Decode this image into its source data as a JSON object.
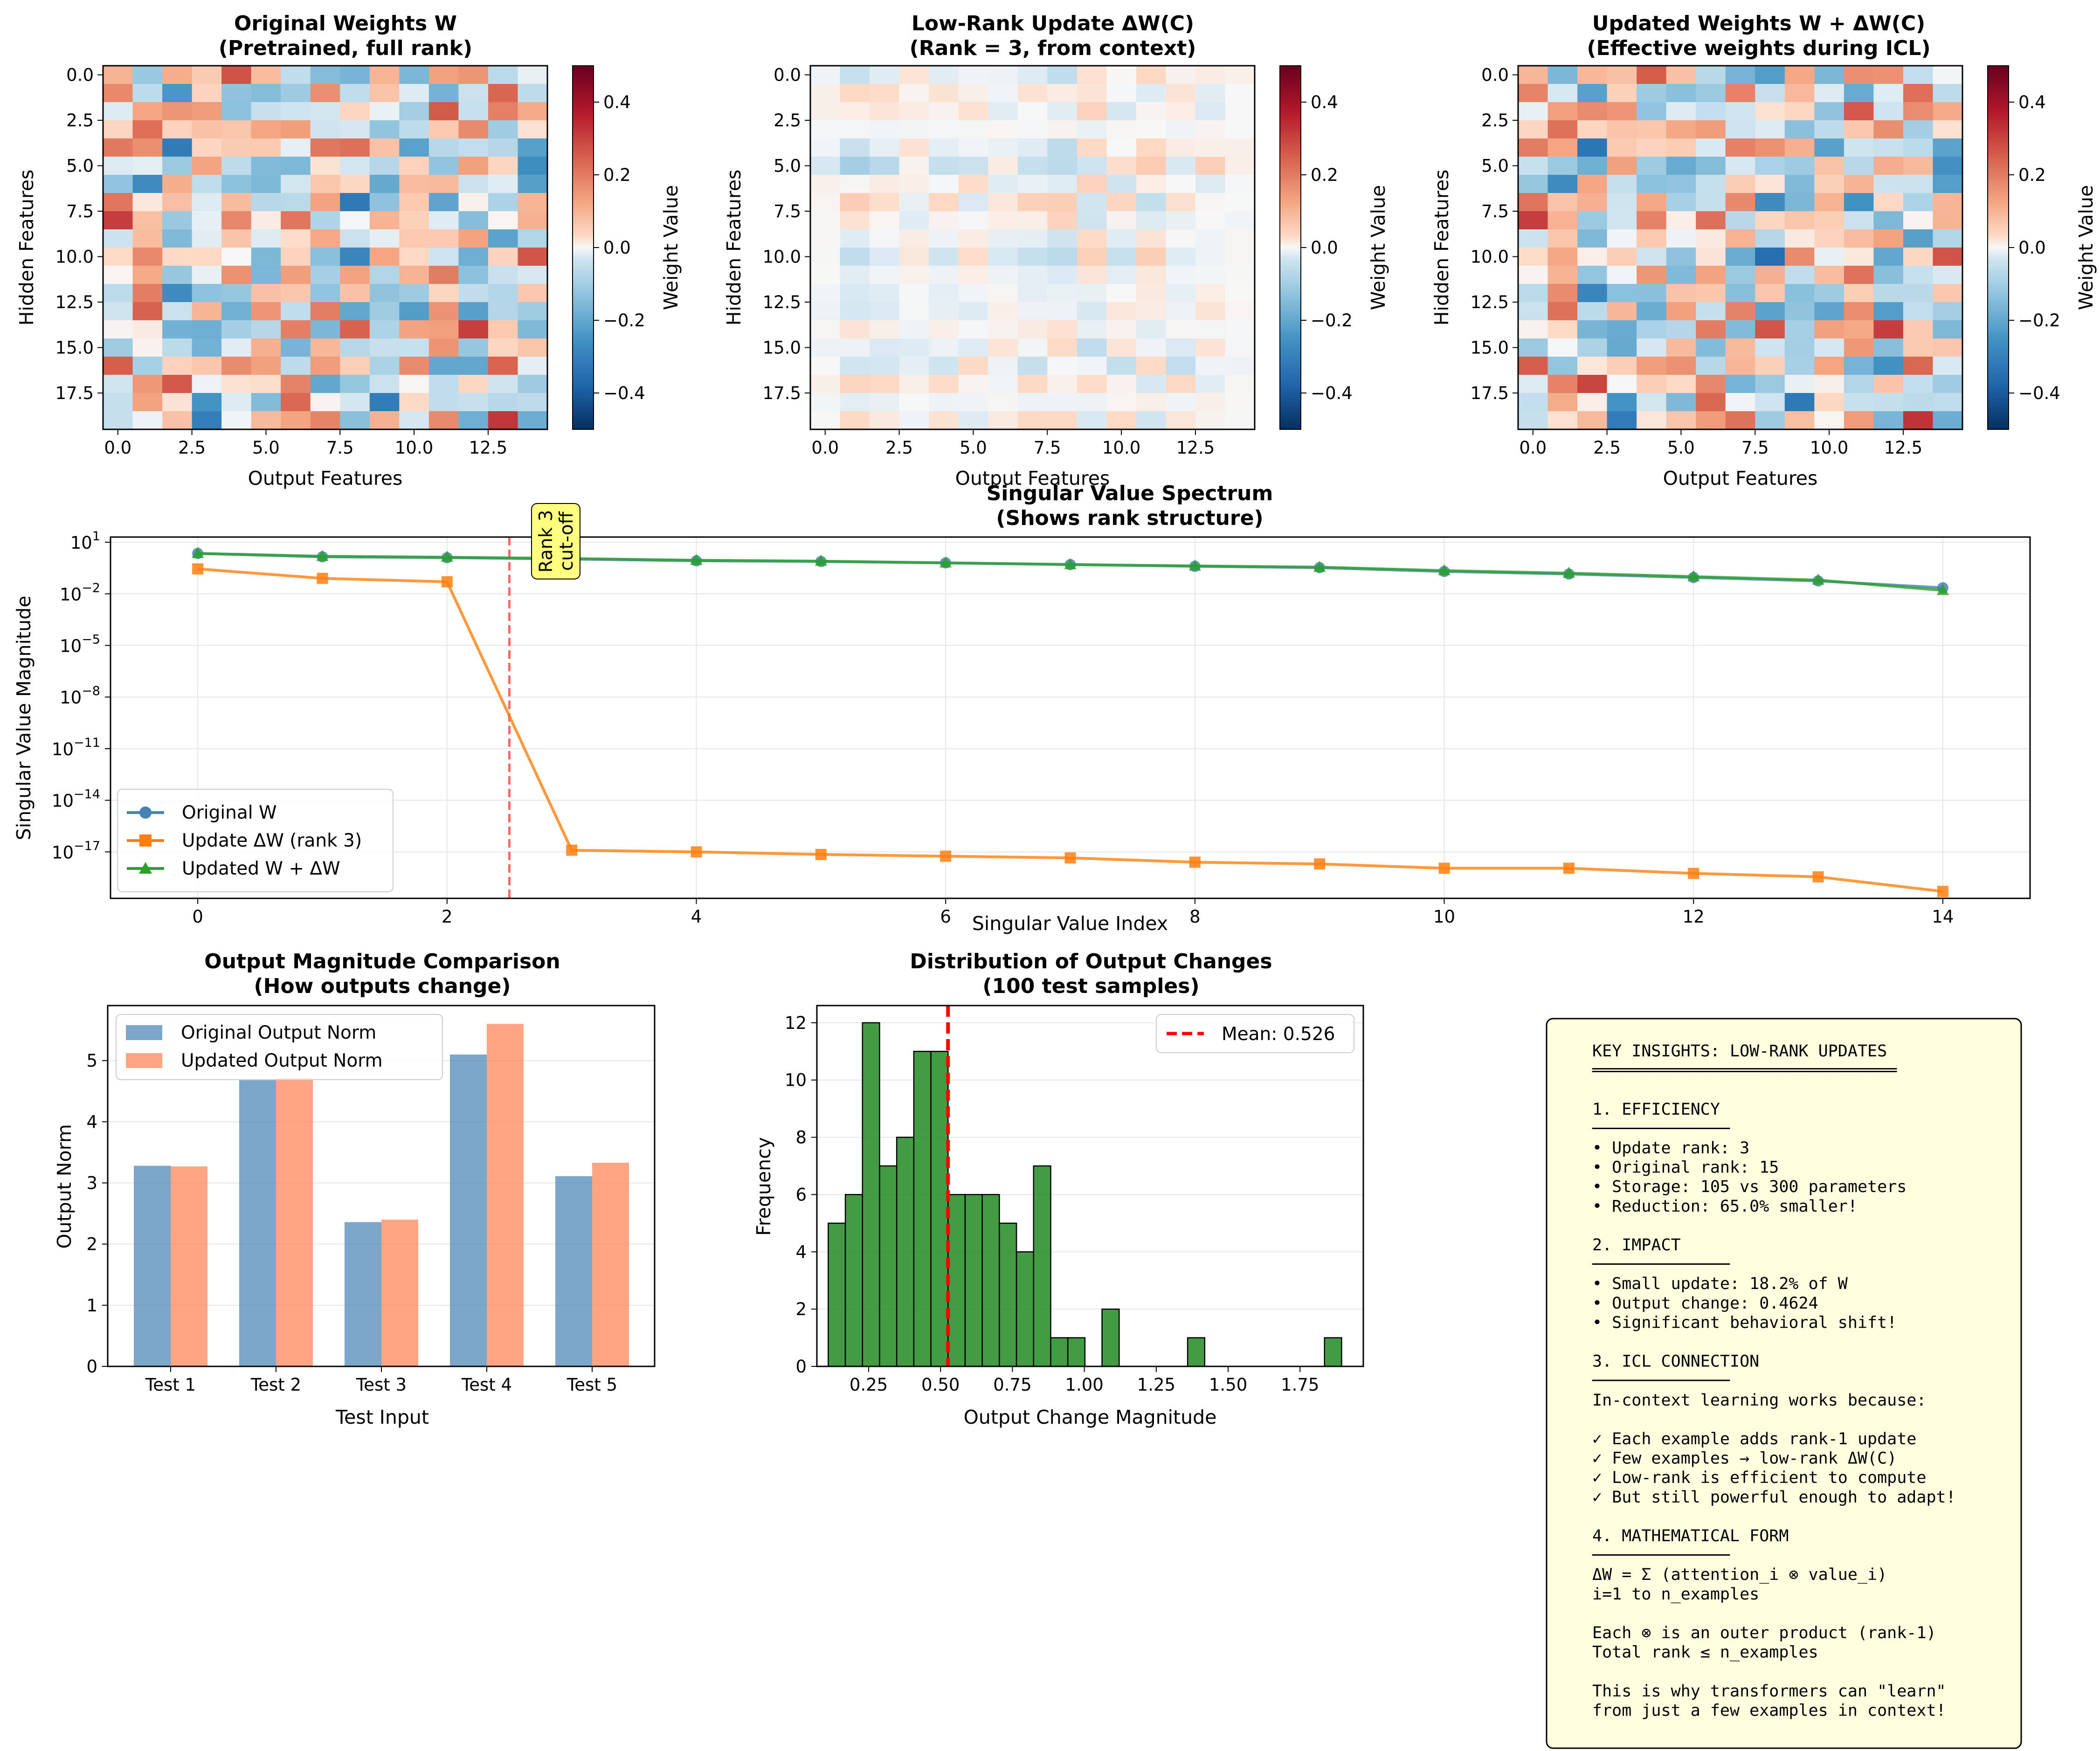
{
  "colors": {
    "original": "#4682b4",
    "update": "#ff7f0e",
    "updated": "#2ca02c",
    "bar_orig": "#4682b4",
    "bar_upd": "#ff7f50",
    "hist": "#228b22",
    "mean": "#ff0000",
    "cutoff": "#ff6666",
    "annot_bg": "#ffff80",
    "insight_bg": "#ffffe0"
  },
  "heatmaps": {
    "axis": {
      "xlabel": "Output Features",
      "ylabel": "Hidden Features",
      "xticks": [
        "0.0",
        "2.5",
        "5.0",
        "7.5",
        "10.0",
        "12.5"
      ],
      "yticks": [
        "0.0",
        "2.5",
        "5.0",
        "7.5",
        "10.0",
        "12.5",
        "15.0",
        "17.5"
      ],
      "colorbar_label": "Weight Value",
      "colorbar_ticks": [
        "0.4",
        "0.2",
        "0.0",
        "−0.2",
        "−0.4"
      ],
      "vmin": -0.5,
      "vmax": 0.5,
      "rows": 20,
      "cols": 15
    },
    "original": {
      "title_line1": "Original Weights W",
      "title_line2": "(Pretrained, full rank)"
    },
    "update": {
      "title_line1": "Low-Rank Update ΔW(C)",
      "title_line2": "(Rank = 3, from context)"
    },
    "updated": {
      "title_line1": "Updated Weights W + ΔW(C)",
      "title_line2": "(Effective weights during ICL)"
    }
  },
  "spectrum": {
    "title_line1": "Singular Value Spectrum",
    "title_line2": "(Shows rank structure)",
    "xlabel": "Singular Value Index",
    "ylabel": "Singular Value Magnitude",
    "xticks": [
      "0",
      "2",
      "4",
      "6",
      "8",
      "10",
      "12",
      "14"
    ],
    "ytick_exponents": [
      "1",
      "−2",
      "−5",
      "−8",
      "−11",
      "−14",
      "−17"
    ],
    "annotation_line1": "Rank 3",
    "annotation_line2": "cut-off",
    "cutoff_x": 2.5,
    "legend": [
      "Original W",
      "Update ΔW (rank 3)",
      "Updated W + ΔW"
    ]
  },
  "bars": {
    "title_line1": "Output Magnitude Comparison",
    "title_line2": "(How outputs change)",
    "xlabel": "Test Input",
    "ylabel": "Output Norm",
    "yticks": [
      "0",
      "1",
      "2",
      "3",
      "4",
      "5"
    ],
    "legend": [
      "Original Output Norm",
      "Updated Output Norm"
    ]
  },
  "hist": {
    "title_line1": "Distribution of Output Changes",
    "title_line2": "(100 test samples)",
    "xlabel": "Output Change Magnitude",
    "ylabel": "Frequency",
    "xticks": [
      "0.25",
      "0.50",
      "0.75",
      "1.00",
      "1.25",
      "1.50",
      "1.75"
    ],
    "yticks": [
      "0",
      "2",
      "4",
      "6",
      "8",
      "10",
      "12"
    ],
    "mean_label": "Mean: 0.526"
  },
  "insights": {
    "lines": [
      "KEY INSIGHTS: LOW-RANK UPDATES",
      "═══════════════════════════════",
      "",
      "1. EFFICIENCY",
      "   ──────────────",
      "   • Update rank: 3",
      "   • Original rank: 15",
      "   • Storage: 105 vs 300 parameters",
      "   • Reduction: 65.0% smaller!",
      "",
      "2. IMPACT",
      "   ──────────────",
      "   • Small update: 18.2% of W",
      "   • Output change: 0.4624",
      "   • Significant behavioral shift!",
      "",
      "3. ICL CONNECTION",
      "   ──────────────",
      "   In-context learning works because:",
      "",
      "   ✓ Each example adds rank-1 update",
      "   ✓ Few examples → low-rank ΔW(C)",
      "   ✓ Low-rank is efficient to compute",
      "   ✓ But still powerful enough to adapt!",
      "",
      "4. MATHEMATICAL FORM",
      "   ──────────────",
      "   ΔW = Σ (attention_i ⊗ value_i)",
      "        i=1 to n_examples",
      "",
      "   Each ⊗ is an outer product (rank-1)",
      "   Total rank ≤ n_examples",
      "",
      "This is why transformers can \"learn\"",
      "from just a few examples in context!"
    ]
  },
  "chart_data": [
    {
      "type": "heatmap",
      "title": "Original Weights W (Pretrained, full rank)",
      "xlabel": "Output Features",
      "ylabel": "Hidden Features",
      "rows": 20,
      "cols": 15,
      "vmin": -0.5,
      "vmax": 0.5,
      "colorbar_label": "Weight Value",
      "note": "random values approx in [-0.5, 0.5]"
    },
    {
      "type": "heatmap",
      "title": "Low-Rank Update ΔW(C) (Rank = 3, from context)",
      "xlabel": "Output Features",
      "ylabel": "Hidden Features",
      "rows": 20,
      "cols": 15,
      "vmin": -0.5,
      "vmax": 0.5,
      "colorbar_label": "Weight Value",
      "note": "small values approx in [-0.08, 0.08]"
    },
    {
      "type": "heatmap",
      "title": "Updated Weights W + ΔW(C) (Effective weights during ICL)",
      "xlabel": "Output Features",
      "ylabel": "Hidden Features",
      "rows": 20,
      "cols": 15,
      "vmin": -0.5,
      "vmax": 0.5,
      "colorbar_label": "Weight Value"
    },
    {
      "type": "line",
      "title": "Singular Value Spectrum (Shows rank structure)",
      "xlabel": "Singular Value Index",
      "ylabel": "Singular Value Magnitude",
      "yscale": "log",
      "xlim": [
        -0.7,
        14.7
      ],
      "ylim_log10": [
        1.3,
        -19.7
      ],
      "x": [
        0,
        1,
        2,
        3,
        4,
        5,
        6,
        7,
        8,
        9,
        10,
        11,
        12,
        13,
        14
      ],
      "series": [
        {
          "name": "Original W",
          "log10_values": [
            0.35,
            0.15,
            0.1,
            0.02,
            -0.08,
            -0.12,
            -0.2,
            -0.3,
            -0.4,
            -0.48,
            -0.7,
            -0.85,
            -1.05,
            -1.25,
            -1.65
          ]
        },
        {
          "name": "Update ΔW (rank 3)",
          "log10_values": [
            -0.55,
            -1.1,
            -1.3,
            -16.9,
            -17.0,
            -17.15,
            -17.25,
            -17.35,
            -17.6,
            -17.7,
            -17.95,
            -17.95,
            -18.25,
            -18.45,
            -19.3
          ]
        },
        {
          "name": "Updated W + ΔW",
          "log10_values": [
            0.35,
            0.18,
            0.13,
            0.05,
            -0.05,
            -0.1,
            -0.2,
            -0.3,
            -0.38,
            -0.45,
            -0.65,
            -0.8,
            -1.0,
            -1.2,
            -1.8
          ]
        }
      ],
      "annotation": "Rank 3 cut-off",
      "vline_x": 2.5
    },
    {
      "type": "bar",
      "title": "Output Magnitude Comparison (How outputs change)",
      "xlabel": "Test Input",
      "ylabel": "Output Norm",
      "ylim": [
        0,
        5.9
      ],
      "categories": [
        "Test 1",
        "Test 2",
        "Test 3",
        "Test 4",
        "Test 5"
      ],
      "series": [
        {
          "name": "Original Output Norm",
          "values": [
            3.28,
            4.68,
            2.36,
            5.1,
            3.11
          ]
        },
        {
          "name": "Updated Output Norm",
          "values": [
            3.27,
            4.72,
            2.4,
            5.6,
            3.33
          ]
        }
      ]
    },
    {
      "type": "bar",
      "subtype": "histogram",
      "title": "Distribution of Output Changes (100 test samples)",
      "xlabel": "Output Change Magnitude",
      "ylabel": "Frequency",
      "xlim": [
        0.07,
        1.97
      ],
      "ylim": [
        0,
        12.6
      ],
      "bin_start": 0.1095,
      "bin_width": 0.0595,
      "counts": [
        5,
        6,
        12,
        7,
        8,
        11,
        11,
        6,
        6,
        6,
        5,
        4,
        7,
        1,
        1,
        0,
        2,
        0,
        0,
        0,
        0,
        1,
        0,
        0,
        0,
        0,
        0,
        0,
        0,
        1
      ],
      "mean": 0.526,
      "mean_label": "Mean: 0.526"
    }
  ]
}
